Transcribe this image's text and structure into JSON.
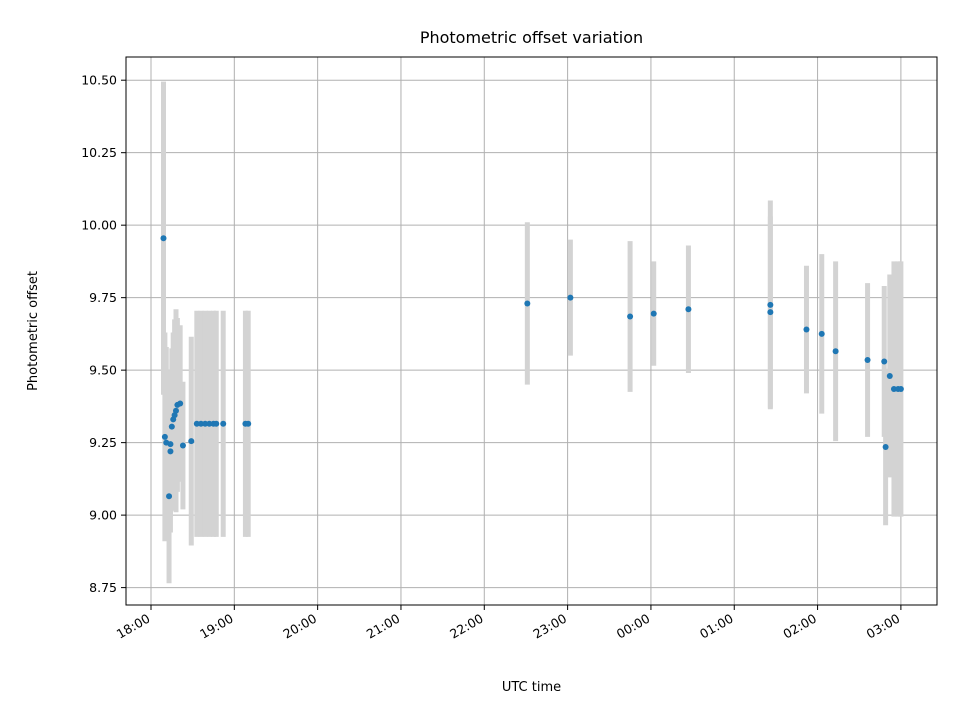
{
  "chart_data": {
    "type": "scatter",
    "title": "Photometric offset variation",
    "xlabel": "UTC time",
    "ylabel": "Photometric offset",
    "xlim": [
      "2000-01-01T17:42",
      "2000-01-02T03:26"
    ],
    "ylim": [
      8.69,
      10.58
    ],
    "x_ticks": [
      {
        "label": "18:00",
        "t": "2000-01-01T18:00"
      },
      {
        "label": "19:00",
        "t": "2000-01-01T19:00"
      },
      {
        "label": "20:00",
        "t": "2000-01-01T20:00"
      },
      {
        "label": "21:00",
        "t": "2000-01-01T21:00"
      },
      {
        "label": "22:00",
        "t": "2000-01-01T22:00"
      },
      {
        "label": "23:00",
        "t": "2000-01-01T23:00"
      },
      {
        "label": "00:00",
        "t": "2000-01-02T00:00"
      },
      {
        "label": "01:00",
        "t": "2000-01-02T01:00"
      },
      {
        "label": "02:00",
        "t": "2000-01-02T02:00"
      },
      {
        "label": "03:00",
        "t": "2000-01-02T03:00"
      }
    ],
    "y_ticks": [
      8.75,
      9.0,
      9.25,
      9.5,
      9.75,
      10.0,
      10.25,
      10.5
    ],
    "y_tick_labels": [
      "8.75",
      "9.00",
      "9.25",
      "9.50",
      "9.75",
      "10.00",
      "10.25",
      "10.50"
    ],
    "grid": true,
    "colors": {
      "marker": "#1f77b4",
      "errorbar": "#d3d3d3",
      "grid": "#b0b0b0"
    },
    "points": [
      {
        "t": "2000-01-01T18:09",
        "y": 9.955,
        "err": 0.54
      },
      {
        "t": "2000-01-01T18:10",
        "y": 9.27,
        "err": 0.36
      },
      {
        "t": "2000-01-01T18:11",
        "y": 9.25,
        "err": 0.33
      },
      {
        "t": "2000-01-01T18:13",
        "y": 9.065,
        "err": 0.3
      },
      {
        "t": "2000-01-01T18:14",
        "y": 9.22,
        "err": 0.28
      },
      {
        "t": "2000-01-01T18:14",
        "y": 9.245,
        "err": 0.25
      },
      {
        "t": "2000-01-01T18:15",
        "y": 9.305,
        "err": 0.27
      },
      {
        "t": "2000-01-01T18:16",
        "y": 9.33,
        "err": 0.3
      },
      {
        "t": "2000-01-01T18:17",
        "y": 9.345,
        "err": 0.33
      },
      {
        "t": "2000-01-01T18:18",
        "y": 9.36,
        "err": 0.35
      },
      {
        "t": "2000-01-01T18:19",
        "y": 9.38,
        "err": 0.3
      },
      {
        "t": "2000-01-01T18:21",
        "y": 9.385,
        "err": 0.27
      },
      {
        "t": "2000-01-01T18:23",
        "y": 9.24,
        "err": 0.22
      },
      {
        "t": "2000-01-01T18:29",
        "y": 9.255,
        "err": 0.36
      },
      {
        "t": "2000-01-01T18:33",
        "y": 9.315,
        "err": 0.39
      },
      {
        "t": "2000-01-01T18:36",
        "y": 9.315,
        "err": 0.39
      },
      {
        "t": "2000-01-01T18:39",
        "y": 9.315,
        "err": 0.39
      },
      {
        "t": "2000-01-01T18:42",
        "y": 9.315,
        "err": 0.39
      },
      {
        "t": "2000-01-01T18:45",
        "y": 9.315,
        "err": 0.39
      },
      {
        "t": "2000-01-01T18:47",
        "y": 9.315,
        "err": 0.39
      },
      {
        "t": "2000-01-01T18:52",
        "y": 9.315,
        "err": 0.39
      },
      {
        "t": "2000-01-01T19:08",
        "y": 9.315,
        "err": 0.39
      },
      {
        "t": "2000-01-01T19:10",
        "y": 9.315,
        "err": 0.39
      },
      {
        "t": "2000-01-01T22:31",
        "y": 9.73,
        "err": 0.28
      },
      {
        "t": "2000-01-01T23:02",
        "y": 9.75,
        "err": 0.2
      },
      {
        "t": "2000-01-01T23:45",
        "y": 9.685,
        "err": 0.26
      },
      {
        "t": "2000-01-02T00:02",
        "y": 9.695,
        "err": 0.18
      },
      {
        "t": "2000-01-02T00:27",
        "y": 9.71,
        "err": 0.22
      },
      {
        "t": "2000-01-02T01:26",
        "y": 9.725,
        "err": 0.36
      },
      {
        "t": "2000-01-02T01:26",
        "y": 9.7,
        "err": 0.33
      },
      {
        "t": "2000-01-02T01:52",
        "y": 9.64,
        "err": 0.22
      },
      {
        "t": "2000-01-02T02:03",
        "y": 9.625,
        "err": 0.275
      },
      {
        "t": "2000-01-02T02:13",
        "y": 9.565,
        "err": 0.31
      },
      {
        "t": "2000-01-02T02:36",
        "y": 9.535,
        "err": 0.265
      },
      {
        "t": "2000-01-02T02:48",
        "y": 9.53,
        "err": 0.26
      },
      {
        "t": "2000-01-02T02:49",
        "y": 9.235,
        "err": 0.27
      },
      {
        "t": "2000-01-02T02:52",
        "y": 9.48,
        "err": 0.35
      },
      {
        "t": "2000-01-02T02:55",
        "y": 9.435,
        "err": 0.44
      },
      {
        "t": "2000-01-02T02:58",
        "y": 9.435,
        "err": 0.44
      },
      {
        "t": "2000-01-02T03:00",
        "y": 9.435,
        "err": 0.44
      }
    ]
  }
}
